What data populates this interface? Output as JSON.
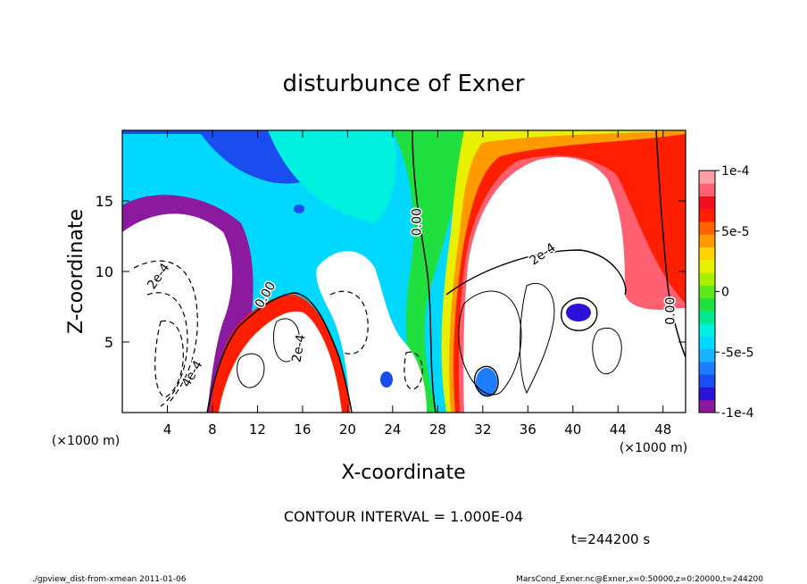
{
  "chart_data": {
    "type": "heatmap",
    "title": "disturbunce of Exner",
    "xlabel": "X-coordinate",
    "ylabel": "Z-coordinate",
    "x_unit_left": "(×1000 m)",
    "x_unit_right": "(×1000 m)",
    "xlim": [
      0,
      50
    ],
    "ylim": [
      0,
      20
    ],
    "x_ticks": [
      4,
      8,
      12,
      16,
      20,
      24,
      28,
      32,
      36,
      40,
      44,
      48
    ],
    "y_ticks": [
      5,
      10,
      15
    ],
    "colorbar": {
      "range": [
        -0.0001,
        0.0001
      ],
      "tick_values": [
        0.0001,
        5e-05,
        0,
        -5e-05,
        -0.0001
      ],
      "tick_labels": [
        "1e-4",
        "5e-5",
        "0",
        "-5e-5",
        "-1e-4"
      ],
      "colors": [
        "#8b1a9e",
        "#2a12d8",
        "#1a4df0",
        "#1e7cff",
        "#19b4ff",
        "#00d8ff",
        "#00f0e0",
        "#00e890",
        "#20e040",
        "#60e818",
        "#a8f000",
        "#e8f000",
        "#ffd200",
        "#ff9b00",
        "#ff6400",
        "#ff1e00",
        "#f01020",
        "#ff6070",
        "#ffa0a8"
      ]
    },
    "contour_labels": [
      {
        "text": "0.00",
        "x": 26.5,
        "y": 13.5,
        "angle": -90
      },
      {
        "text": "0.00",
        "x": 13.0,
        "y": 8.2,
        "angle": -60
      },
      {
        "text": "0.00",
        "x": 49.0,
        "y": 7.2,
        "angle": -90
      },
      {
        "text": "2e-4",
        "x": 3.5,
        "y": 9.5,
        "angle": -55
      },
      {
        "text": "2e-4",
        "x": 37.5,
        "y": 11.0,
        "angle": -35
      },
      {
        "text": "2e-4",
        "x": 16.0,
        "y": 4.5,
        "angle": -80
      },
      {
        "text": "4e-4",
        "x": 6.5,
        "y": 2.6,
        "angle": -60
      }
    ],
    "contour_interval_text": "CONTOUR INTERVAL = 1.000E-04",
    "time_text": "t=244200 s"
  },
  "footer": {
    "left": "./gpview_dist-from-xmean   2011-01-06",
    "right": "MarsCond_Exner.nc@Exner,x=0:50000,z=0:20000,t=244200"
  }
}
